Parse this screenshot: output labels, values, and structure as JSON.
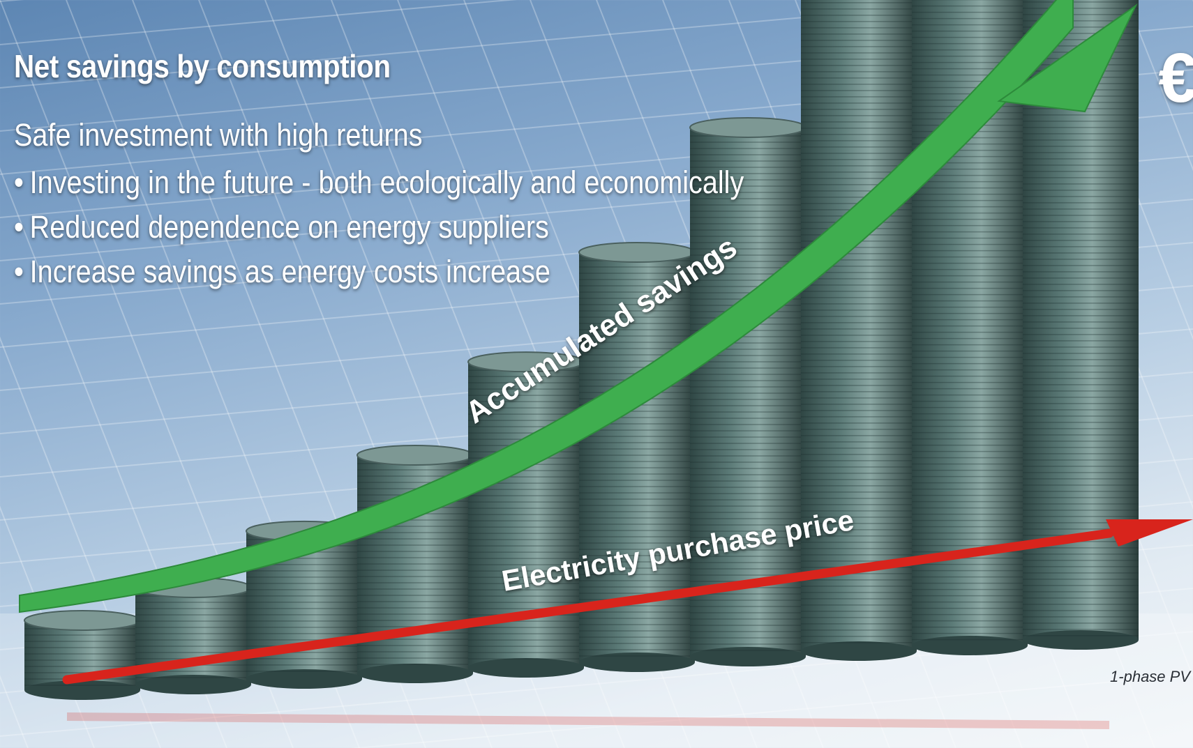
{
  "headline": "Net savings by consumption",
  "subheadline": "Safe investment with high returns",
  "bullets": [
    "Investing in the future - both ecologically and economically",
    "Reduced dependence on energy suppliers",
    "Increase savings as energy costs increase"
  ],
  "bullet_symbol": "•",
  "currency_symbol": "€",
  "curves": {
    "savings_label": "Accumulated savings",
    "price_label": "Electricity purchase price"
  },
  "footnote": "1-phase PV",
  "coin_stacks": 10,
  "colors": {
    "savings_arrow": "#3fae4f",
    "price_arrow": "#d8241c",
    "coins": "#5c7b78",
    "text": "#ffffff"
  }
}
